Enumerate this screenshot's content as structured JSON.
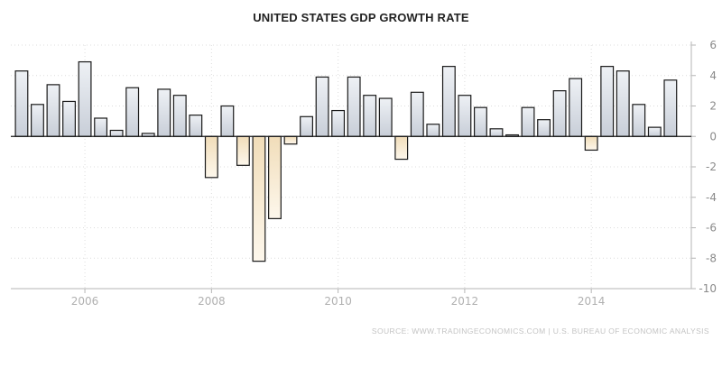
{
  "chart_data": {
    "type": "bar",
    "title": "UNITED STATES GDP GROWTH RATE",
    "xlabel": "",
    "ylabel": "",
    "ylim": [
      -10,
      6
    ],
    "yticks": [
      6,
      4,
      2,
      0,
      -2,
      -4,
      -6,
      -8,
      -10
    ],
    "xlim": [
      2004.83,
      2015.58
    ],
    "x_tick_labels": [
      "2006",
      "2008",
      "2010",
      "2012",
      "2014"
    ],
    "x_tick_values": [
      2006,
      2008,
      2010,
      2012,
      2014
    ],
    "grid": true,
    "series": [
      {
        "name": "GDP Growth Rate",
        "x": [
          2005.0,
          2005.25,
          2005.5,
          2005.75,
          2006.0,
          2006.25,
          2006.5,
          2006.75,
          2007.0,
          2007.25,
          2007.5,
          2007.75,
          2008.0,
          2008.25,
          2008.5,
          2008.75,
          2009.0,
          2009.25,
          2009.5,
          2009.75,
          2010.0,
          2010.25,
          2010.5,
          2010.75,
          2011.0,
          2011.25,
          2011.5,
          2011.75,
          2012.0,
          2012.25,
          2012.5,
          2012.75,
          2013.0,
          2013.25,
          2013.5,
          2013.75,
          2014.0,
          2014.25,
          2014.5,
          2014.75,
          2015.0,
          2015.25
        ],
        "values": [
          4.3,
          2.1,
          3.4,
          2.3,
          4.9,
          1.2,
          0.4,
          3.2,
          0.2,
          3.1,
          2.7,
          1.4,
          -2.7,
          2.0,
          -1.9,
          -8.2,
          -5.4,
          -0.5,
          1.3,
          3.9,
          1.7,
          3.9,
          2.7,
          2.5,
          -1.5,
          2.9,
          0.8,
          4.6,
          2.7,
          1.9,
          0.5,
          0.1,
          1.9,
          1.1,
          3.0,
          3.8,
          -0.9,
          4.6,
          4.3,
          2.1,
          0.6,
          3.7
        ]
      }
    ]
  },
  "source": "SOURCE: WWW.TRADINGECONOMICS.COM | U.S. BUREAU OF ECONOMIC ANALYSIS",
  "colors": {
    "positive_top": "#eef1f5",
    "positive_bottom": "#c8ced8",
    "negative_top": "#f1ddb9",
    "negative_bottom": "#fdf7ec",
    "bar_stroke": "#1a1a1a",
    "grid": "#dcdcdc",
    "axis": "#b5b5b5"
  }
}
